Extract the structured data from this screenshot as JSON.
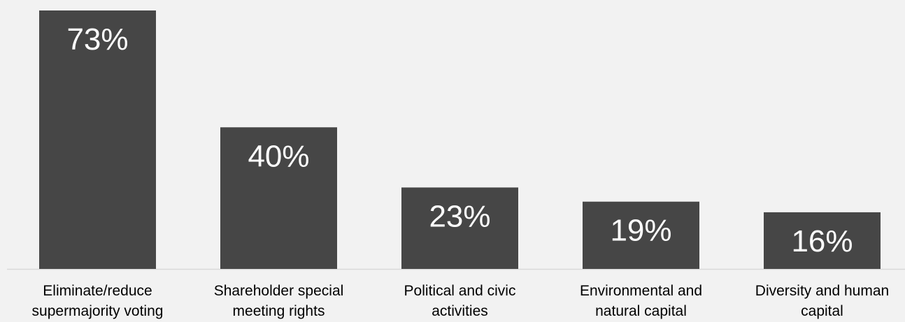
{
  "chart_data": {
    "type": "bar",
    "categories": [
      [
        "Eliminate/reduce",
        "supermajority voting"
      ],
      [
        "Shareholder special",
        "meeting rights"
      ],
      [
        "Political and civic",
        "activities"
      ],
      [
        "Environmental and",
        "natural capital"
      ],
      [
        "Diversity and human",
        "capital"
      ]
    ],
    "values": [
      73,
      40,
      23,
      19,
      16
    ],
    "value_labels": [
      "73%",
      "40%",
      "23%",
      "19%",
      "16%"
    ],
    "ylim": [
      0,
      73
    ],
    "grid": false,
    "legend": "none",
    "title": "",
    "xlabel": "",
    "ylabel": ""
  },
  "colors": {
    "background": "#f2f2f2",
    "bar": "#464646",
    "bar_label": "#ffffff",
    "axis": "#d9d9d9",
    "category_text": "#000000"
  }
}
